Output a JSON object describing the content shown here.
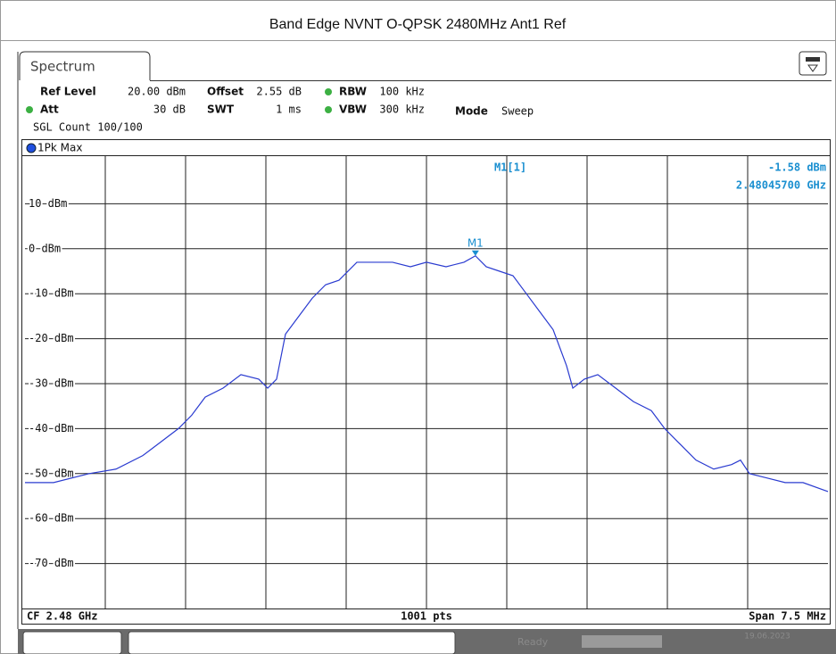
{
  "chart_data": {
    "type": "line",
    "title": "Band Edge NVNT O-QPSK 2480MHz Ant1 Ref",
    "tab": "Spectrum",
    "settings": [
      {
        "name": "Ref Level",
        "value": "20.00 dBm"
      },
      {
        "name": "Offset",
        "value": "2.55 dB"
      },
      {
        "name": "RBW",
        "value": "100 kHz"
      },
      {
        "name": "Att",
        "value": "30 dB"
      },
      {
        "name": "SWT",
        "value": "1 ms"
      },
      {
        "name": "VBW",
        "value": "300 kHz"
      },
      {
        "name": "Mode",
        "value": "Sweep"
      }
    ],
    "sweep_count": "SGL Count 100/100",
    "x": [
      2.47625,
      2.476517,
      2.47685,
      2.4771,
      2.47735,
      2.477517,
      2.477683,
      2.477808,
      2.477933,
      2.4781,
      2.478267,
      2.478433,
      2.478517,
      2.4786,
      2.478683,
      2.478808,
      2.478933,
      2.479058,
      2.479183,
      2.47935,
      2.479517,
      2.479683,
      2.47985,
      2.48,
      2.480183,
      2.48035,
      2.480457,
      2.480558,
      2.480683,
      2.480808,
      2.480933,
      2.481058,
      2.481183,
      2.481308,
      2.481367,
      2.481475,
      2.4816,
      2.481767,
      2.481933,
      2.4821,
      2.482225,
      2.48235,
      2.482517,
      2.482683,
      2.48285,
      2.482933,
      2.483017,
      2.483183,
      2.48335,
      2.483517,
      2.48375
    ],
    "series": [
      {
        "name": "1Pk Max",
        "color": "#2a3bd0",
        "values": [
          -52,
          -52,
          -50,
          -49,
          -46,
          -43,
          -40,
          -37,
          -33,
          -31,
          -28,
          -29,
          -31,
          -29,
          -19,
          -15,
          -11,
          -8,
          -7,
          -3,
          -3,
          -3,
          -4,
          -3,
          -4,
          -3,
          -1.58,
          -4,
          -5,
          -6,
          -10,
          -14,
          -18,
          -26,
          -31,
          -29,
          -28,
          -31,
          -34,
          -36,
          -40,
          -43,
          -47,
          -49,
          -48,
          -47,
          -50,
          -51,
          -52,
          -52,
          -54
        ]
      }
    ],
    "xlim": [
      2.47625,
      2.48375
    ],
    "ylim": [
      -80,
      20
    ],
    "yticks": [
      {
        "value": 10,
        "label": "10 dBm"
      },
      {
        "value": 0,
        "label": "0 dBm"
      },
      {
        "value": -10,
        "label": "-10 dBm"
      },
      {
        "value": -20,
        "label": "-20 dBm"
      },
      {
        "value": -30,
        "label": "-30 dBm"
      },
      {
        "value": -40,
        "label": "-40 dBm"
      },
      {
        "value": -50,
        "label": "-50 dBm"
      },
      {
        "value": -60,
        "label": "-60 dBm"
      },
      {
        "value": -70,
        "label": "-70 dBm"
      }
    ],
    "grid": true,
    "marker": {
      "name": "M1",
      "readout": "M1[1]",
      "x": 2.480457,
      "y": -1.58,
      "level_label": "-1.58 dBm",
      "freq_label": "2.48045700 GHz"
    },
    "footer": {
      "center_frequency": "CF 2.48 GHz",
      "points": "1001 pts",
      "span": "Span 7.5 MHz"
    },
    "status": {
      "state": "Ready",
      "date": "19.06.2023"
    }
  }
}
